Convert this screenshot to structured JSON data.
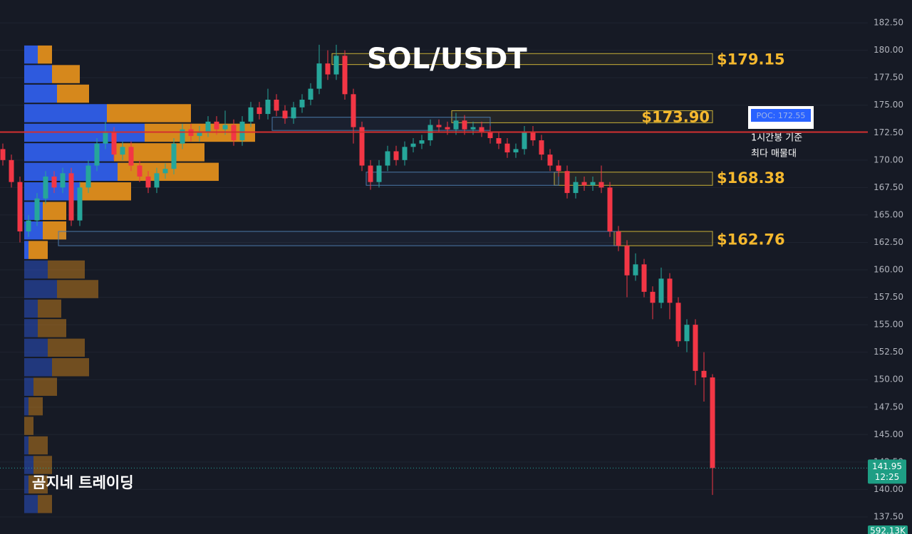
{
  "chart_data": {
    "type": "candlestick",
    "title": "SOL/USDT",
    "watermark": "곰지네 트레이딩",
    "up_color": "#26a69a",
    "down_color": "#f23645",
    "ylim": [
      135.94,
      184.58
    ],
    "yticks": [
      {
        "value": 182.5,
        "label": "182.50"
      },
      {
        "value": 180,
        "label": "180.00"
      },
      {
        "value": 177.5,
        "label": "177.50"
      },
      {
        "value": 175,
        "label": "175.00"
      },
      {
        "value": 172.5,
        "label": "172.50"
      },
      {
        "value": 170,
        "label": "170.00"
      },
      {
        "value": 167.5,
        "label": "167.50"
      },
      {
        "value": 165,
        "label": "165.00"
      },
      {
        "value": 162.5,
        "label": "162.50"
      },
      {
        "value": 160,
        "label": "160.00"
      },
      {
        "value": 157.5,
        "label": "157.50"
      },
      {
        "value": 155,
        "label": "155.00"
      },
      {
        "value": 152.5,
        "label": "152.50"
      },
      {
        "value": 150,
        "label": "150.00"
      },
      {
        "value": 147.5,
        "label": "147.50"
      },
      {
        "value": 145,
        "label": "145.00"
      },
      {
        "value": 142.5,
        "label": "142.50"
      },
      {
        "value": 140,
        "label": "140.00"
      },
      {
        "value": 137.5,
        "label": "137.50"
      }
    ],
    "grid": true,
    "open": [
      171,
      170,
      168,
      163.5,
      164.5,
      166.5,
      168.5,
      167.5,
      168.8,
      164.5,
      167.5,
      169.5,
      171.5,
      172.6,
      170.5,
      171.2,
      169.5,
      168.5,
      167.5,
      168.8,
      169.2,
      171.5,
      172.8,
      172.2,
      172.6,
      173.5,
      172.8,
      173.2,
      171.8,
      173.5,
      174.8,
      174.2,
      175.5,
      174.5,
      173.8,
      174.8,
      175.5,
      176.5,
      178.8,
      177.8,
      179.5,
      176,
      173,
      169.5,
      168,
      169.5,
      170.8,
      170,
      171.2,
      171.5,
      171.8,
      173.2,
      173,
      172.8,
      173.6,
      172.8,
      173,
      172.6,
      172,
      171.5,
      170.7,
      171,
      172.6,
      171.8,
      170.5,
      169.5,
      169,
      167,
      168,
      167.7,
      168,
      167.5,
      163.5,
      162.2,
      159.5,
      160.5,
      158,
      157,
      159.2,
      157,
      153.5,
      155,
      150.8,
      150.2
    ],
    "high": [
      171.5,
      170.5,
      168.5,
      165,
      167,
      169,
      169,
      169.3,
      169.3,
      168,
      170,
      172,
      173.5,
      173,
      171.7,
      171.7,
      170,
      169,
      169.3,
      169.7,
      172,
      173.3,
      173.3,
      173.1,
      174,
      174,
      174.5,
      173.7,
      174,
      175.3,
      175.3,
      176.5,
      176,
      175,
      175.3,
      176,
      177,
      180.5,
      180,
      180.5,
      180,
      176.5,
      173.5,
      170,
      170,
      171.3,
      171.3,
      171.7,
      172,
      172.3,
      173.7,
      173.7,
      173.5,
      174.3,
      174.1,
      173.5,
      173.5,
      173.1,
      172.5,
      172,
      171.5,
      173.1,
      173.1,
      172.3,
      171,
      170,
      169.5,
      168.5,
      168.5,
      168.5,
      169.5,
      168,
      164,
      162.7,
      161.5,
      161,
      158.5,
      160.2,
      159.7,
      157.5,
      155.5,
      155.5,
      152.5,
      150.5
    ],
    "low": [
      169.5,
      167.5,
      162.5,
      163,
      164,
      166,
      167,
      167,
      164,
      164,
      167,
      169,
      171,
      170,
      170,
      169,
      168,
      167,
      167,
      168.3,
      168.7,
      171,
      171.7,
      171.7,
      172.1,
      172.3,
      172.3,
      171.3,
      171.3,
      173,
      173.7,
      173.7,
      174,
      173.3,
      173.3,
      174.3,
      175,
      176,
      177.3,
      177.3,
      175.5,
      171.5,
      169,
      167.3,
      167.5,
      169,
      169.5,
      169.5,
      170.7,
      171,
      171.3,
      172.5,
      172.3,
      172.3,
      172.3,
      172.3,
      172.1,
      171.5,
      171,
      170.2,
      170.2,
      170.5,
      171.3,
      170,
      169,
      168.5,
      166.5,
      166.5,
      167.2,
      167.2,
      167,
      163,
      161.7,
      157.5,
      159,
      157.5,
      155.5,
      156.5,
      155.5,
      153,
      152.5,
      149.5,
      148,
      139.5
    ],
    "close": [
      170,
      168,
      163.5,
      164.5,
      166.5,
      168.5,
      167.5,
      168.8,
      164.5,
      167.5,
      169.5,
      171.5,
      172.6,
      170.5,
      171.2,
      169.5,
      168.5,
      167.5,
      168.8,
      169.2,
      171.5,
      172.8,
      172.2,
      172.6,
      173.5,
      172.8,
      173.2,
      171.8,
      173.5,
      174.8,
      174.2,
      175.5,
      174.5,
      173.8,
      174.8,
      175.5,
      176.5,
      178.8,
      177.8,
      179.5,
      176,
      173,
      169.5,
      168,
      169.5,
      170.8,
      170,
      171.2,
      171.5,
      171.8,
      173.2,
      173,
      172.8,
      173.6,
      172.8,
      173,
      172.6,
      172,
      171.5,
      170.7,
      171,
      172.6,
      171.8,
      170.5,
      169.5,
      169,
      167,
      168,
      167.7,
      168,
      167.5,
      163.5,
      162.2,
      159.5,
      160.5,
      158,
      157,
      159.2,
      157,
      153.5,
      155,
      150.8,
      150.2,
      141.95
    ],
    "volume_profile": {
      "price_top": 180.5,
      "row_height": 1.78,
      "value_area": [
        159.9,
        180.5
      ],
      "buy_color": "#2f5ee8",
      "sell_color": "#e08e1b",
      "buy": [
        19,
        39,
        46,
        116,
        169,
        126,
        131,
        78,
        26,
        26,
        6,
        33,
        46,
        19,
        19,
        33,
        39,
        13,
        6,
        0,
        6,
        13,
        6,
        19
      ],
      "sell": [
        20,
        39,
        45,
        118,
        155,
        127,
        142,
        72,
        33,
        33,
        27,
        52,
        58,
        33,
        40,
        52,
        52,
        33,
        20,
        13,
        27,
        26,
        27,
        20
      ]
    },
    "zones": [
      {
        "value": 179.15,
        "label": "$179.15",
        "top": 179.7,
        "bottom": 178.7,
        "start": 39,
        "end": 83,
        "color": "#c9b037",
        "label_position": "outside"
      },
      {
        "value": 173.9,
        "label": "$173.90",
        "top": 174.5,
        "bottom": 173.4,
        "start": 53,
        "end": 83,
        "color": "#c9b037",
        "label_position": "inside"
      },
      {
        "value": 168.38,
        "label": "$168.38",
        "top": 168.9,
        "bottom": 167.7,
        "start": 65,
        "end": 83,
        "color": "#c9b037",
        "label_position": "outside"
      },
      {
        "value": 162.76,
        "label": "$162.76",
        "top": 163.5,
        "bottom": 162.2,
        "start": 72,
        "end": 83,
        "color": "#c9b037",
        "label_position": "outside"
      },
      {
        "top": 173.9,
        "bottom": 172.7,
        "start": 32,
        "end": 57,
        "color": "#4a78a8"
      },
      {
        "top": 168.9,
        "bottom": 167.7,
        "start": 43,
        "end": 65,
        "color": "#4a78a8"
      },
      {
        "top": 163.5,
        "bottom": 162.2,
        "start": 7,
        "end": 72,
        "color": "#4a78a8"
      }
    ],
    "poc": {
      "value": 172.55,
      "label": "POC: 172.55",
      "color": "#d32f2f"
    },
    "annotation": [
      "1시간봉 기준",
      "최다 매물대"
    ],
    "last_price": {
      "value": 141.95,
      "label": "141.95",
      "time": "12:25"
    },
    "last_volume": {
      "value": 592130,
      "label": "592.13K"
    }
  }
}
